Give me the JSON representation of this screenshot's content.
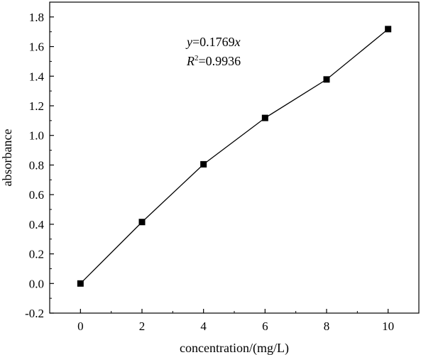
{
  "chart_data": {
    "type": "line",
    "xlabel": "concentration/(mg/L)",
    "ylabel": "absorbance",
    "xlim": [
      -1,
      11
    ],
    "ylim": [
      -0.2,
      1.9
    ],
    "xticks": [
      0,
      2,
      4,
      6,
      8,
      10
    ],
    "yticks": [
      -0.2,
      0.0,
      0.2,
      0.4,
      0.6,
      0.8,
      1.0,
      1.2,
      1.4,
      1.6,
      1.8
    ],
    "xtick_labels": [
      "0",
      "2",
      "4",
      "6",
      "8",
      "10"
    ],
    "ytick_labels": [
      "-0.2",
      "0.0",
      "0.2",
      "0.4",
      "0.6",
      "0.8",
      "1.0",
      "1.2",
      "1.4",
      "1.6",
      "1.8"
    ],
    "series": [
      {
        "x": [
          0,
          2,
          4,
          6,
          8,
          10
        ],
        "y": [
          0.0,
          0.415,
          0.805,
          1.118,
          1.378,
          1.718
        ],
        "marker": "square",
        "color": "#000000"
      }
    ],
    "annotation": {
      "equation_var": "y",
      "equation_rest": "=0.1769",
      "equation_x": "x",
      "r2_var": "R",
      "r2_sup": "2",
      "r2_rest": "=0.9936"
    },
    "grid": false,
    "legend": "none"
  }
}
